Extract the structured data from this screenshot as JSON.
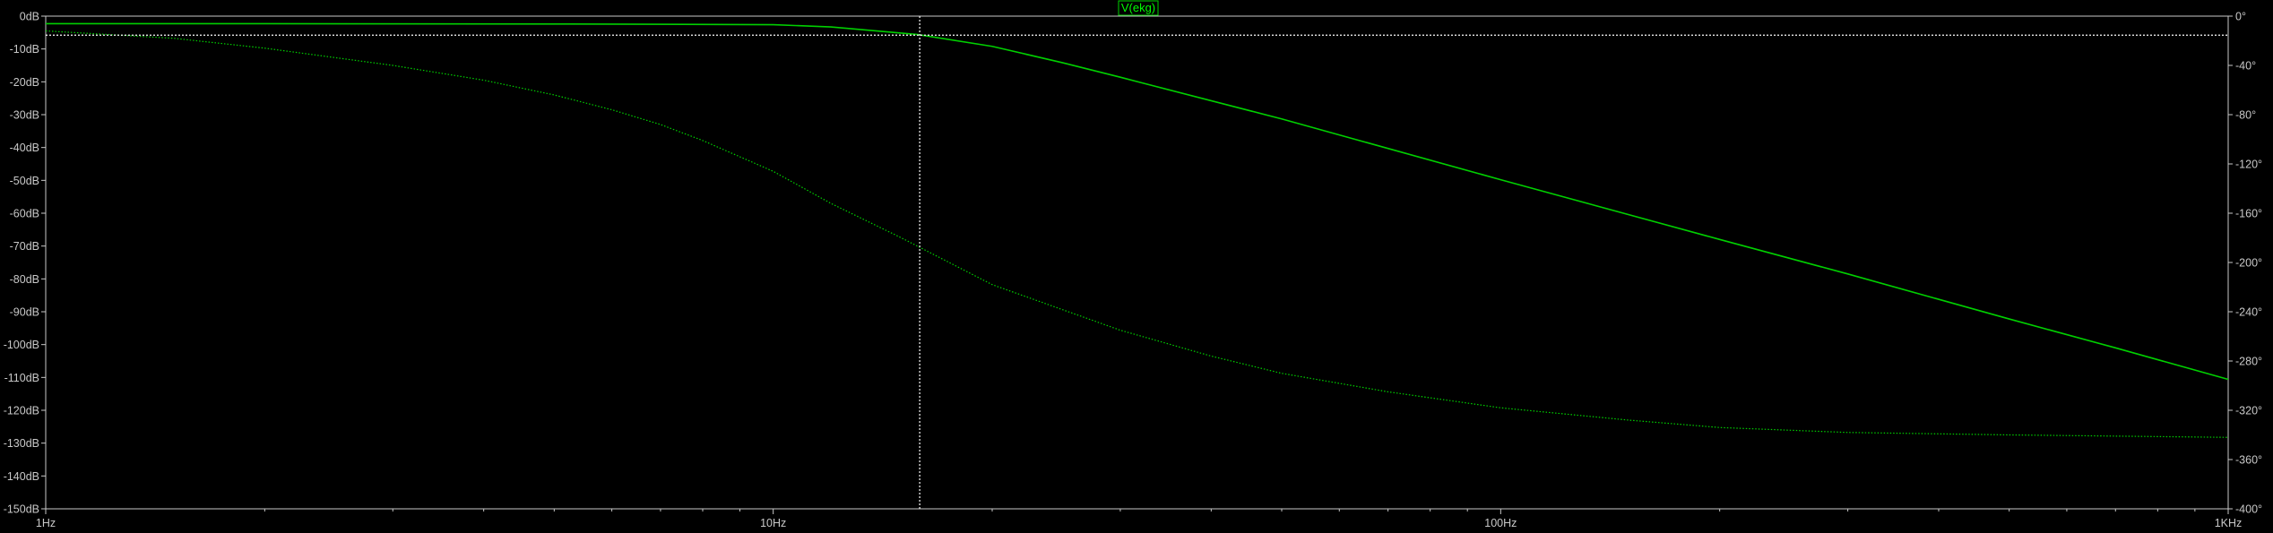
{
  "chart_data": {
    "type": "line",
    "title": "",
    "legend": {
      "label": "V(ekg)",
      "placement": "top-center",
      "color": "#00d000",
      "border_color": "#00d000"
    },
    "x_axis": {
      "scale": "log",
      "range_hz": [
        1,
        1000
      ],
      "tick_values": [
        1,
        10,
        100,
        1000
      ],
      "tick_labels": [
        "1Hz",
        "10Hz",
        "100Hz",
        "1KHz"
      ]
    },
    "y_axis_left": {
      "label": "",
      "unit": "dB",
      "range": [
        -150,
        0
      ],
      "tick_values": [
        0,
        -10,
        -20,
        -30,
        -40,
        -50,
        -60,
        -70,
        -80,
        -90,
        -100,
        -110,
        -120,
        -130,
        -140,
        -150
      ],
      "tick_labels": [
        "0dB",
        "-10dB",
        "-20dB",
        "-30dB",
        "-40dB",
        "-50dB",
        "-60dB",
        "-70dB",
        "-80dB",
        "-90dB",
        "-100dB",
        "-110dB",
        "-120dB",
        "-130dB",
        "-140dB",
        "-150dB"
      ]
    },
    "y_axis_right": {
      "label": "",
      "unit": "degrees",
      "range": [
        -400,
        0
      ],
      "tick_values": [
        0,
        -40,
        -80,
        -120,
        -160,
        -200,
        -240,
        -280,
        -320,
        -360,
        -400
      ],
      "tick_labels": [
        "0°",
        "-40°",
        "-80°",
        "-120°",
        "-160°",
        "-200°",
        "-240°",
        "-280°",
        "-320°",
        "-360°",
        "-400°"
      ]
    },
    "grid": false,
    "cursor": {
      "x_hz": 15.9,
      "magnitude_db": -5.8
    },
    "colors": {
      "background": "#000000",
      "trace": "#00d000",
      "axis": "#c8c8c8",
      "cursor": "#ffffff"
    },
    "series": [
      {
        "name": "V(ekg)",
        "style": "solid",
        "axis": "left",
        "points": [
          [
            1,
            -2.3
          ],
          [
            2,
            -2.3
          ],
          [
            5,
            -2.4
          ],
          [
            10,
            -2.6
          ],
          [
            12,
            -3.3
          ],
          [
            15.8,
            -5.6
          ],
          [
            20,
            -9.2
          ],
          [
            25,
            -14.2
          ],
          [
            30,
            -18.6
          ],
          [
            50,
            -31.3
          ],
          [
            100,
            -49.8
          ],
          [
            200,
            -68.0
          ],
          [
            300,
            -78.5
          ],
          [
            500,
            -92.2
          ],
          [
            700,
            -101.0
          ],
          [
            1000,
            -110.6
          ]
        ]
      },
      {
        "name": "V(ekg) phase",
        "style": "dotted",
        "axis": "right",
        "points": [
          [
            1,
            -12
          ],
          [
            1.5,
            -18
          ],
          [
            2,
            -26
          ],
          [
            3,
            -40
          ],
          [
            4,
            -52
          ],
          [
            5,
            -64
          ],
          [
            6,
            -76
          ],
          [
            7,
            -88
          ],
          [
            8,
            -101
          ],
          [
            10,
            -126
          ],
          [
            12,
            -152
          ],
          [
            15,
            -180
          ],
          [
            20,
            -218
          ],
          [
            30,
            -255
          ],
          [
            40,
            -276
          ],
          [
            50,
            -290
          ],
          [
            70,
            -305
          ],
          [
            100,
            -318
          ],
          [
            150,
            -328
          ],
          [
            200,
            -334
          ],
          [
            300,
            -338
          ],
          [
            500,
            -340
          ],
          [
            1000,
            -342
          ]
        ]
      }
    ]
  }
}
